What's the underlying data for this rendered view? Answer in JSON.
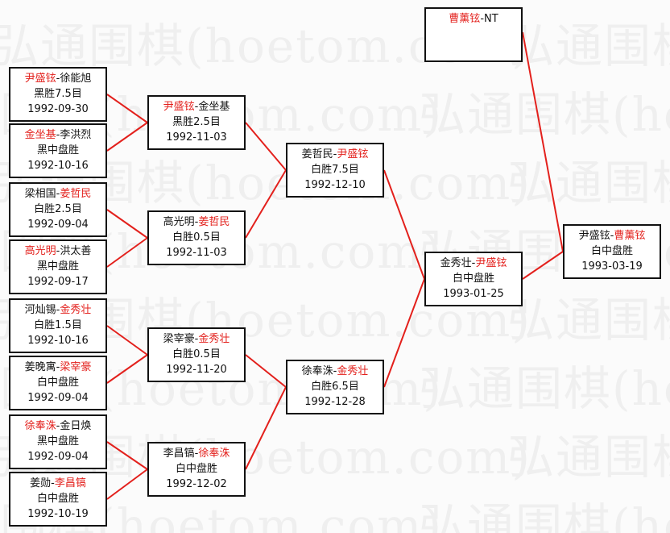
{
  "watermark": "弘通围棋(hoetom.com)",
  "colors": {
    "winner": "#e3201c",
    "connector": "#e3201c",
    "border": "#111111",
    "text": "#111111"
  },
  "rounds": [
    {
      "matches": [
        {
          "players": [
            {
              "name": "尹盛铉",
              "winner": true
            },
            {
              "name": "徐能旭",
              "winner": false
            }
          ],
          "result": "黑胜7.5目",
          "date": "1992-09-30"
        },
        {
          "players": [
            {
              "name": "金坐基",
              "winner": true
            },
            {
              "name": "李洪烈",
              "winner": false
            }
          ],
          "result": "黑中盘胜",
          "date": "1992-10-16"
        },
        {
          "players": [
            {
              "name": "梁相国",
              "winner": false
            },
            {
              "name": "姜哲民",
              "winner": true
            }
          ],
          "result": "白胜2.5目",
          "date": "1992-09-04"
        },
        {
          "players": [
            {
              "name": "高光明",
              "winner": true
            },
            {
              "name": "洪太善",
              "winner": false
            }
          ],
          "result": "黑中盘胜",
          "date": "1992-09-17"
        },
        {
          "players": [
            {
              "name": "河灿锡",
              "winner": false
            },
            {
              "name": "金秀壮",
              "winner": true
            }
          ],
          "result": "白胜1.5目",
          "date": "1992-10-16"
        },
        {
          "players": [
            {
              "name": "姜晚寓",
              "winner": false
            },
            {
              "name": "梁宰豪",
              "winner": true
            }
          ],
          "result": "白中盘胜",
          "date": "1992-09-04"
        },
        {
          "players": [
            {
              "name": "徐奉洙",
              "winner": true
            },
            {
              "name": "金日焕",
              "winner": false
            }
          ],
          "result": "黑中盘胜",
          "date": "1992-09-04"
        },
        {
          "players": [
            {
              "name": "姜勋",
              "winner": false
            },
            {
              "name": "李昌镐",
              "winner": true
            }
          ],
          "result": "白中盘胜",
          "date": "1992-10-19"
        }
      ]
    },
    {
      "matches": [
        {
          "players": [
            {
              "name": "尹盛铉",
              "winner": true
            },
            {
              "name": "金坐基",
              "winner": false
            }
          ],
          "result": "黑胜2.5目",
          "date": "1992-11-03"
        },
        {
          "players": [
            {
              "name": "高光明",
              "winner": false
            },
            {
              "name": "姜哲民",
              "winner": true
            }
          ],
          "result": "白胜0.5目",
          "date": "1992-11-03"
        },
        {
          "players": [
            {
              "name": "梁宰豪",
              "winner": false
            },
            {
              "name": "金秀壮",
              "winner": true
            }
          ],
          "result": "白胜0.5目",
          "date": "1992-11-20"
        },
        {
          "players": [
            {
              "name": "李昌镐",
              "winner": false
            },
            {
              "name": "徐奉洙",
              "winner": true
            }
          ],
          "result": "白中盘胜",
          "date": "1992-12-02"
        }
      ]
    },
    {
      "matches": [
        {
          "players": [
            {
              "name": "姜哲民",
              "winner": false
            },
            {
              "name": "尹盛铉",
              "winner": true
            }
          ],
          "result": "白胜7.5目",
          "date": "1992-12-10"
        },
        {
          "players": [
            {
              "name": "徐奉洙",
              "winner": false
            },
            {
              "name": "金秀壮",
              "winner": true
            }
          ],
          "result": "白胜6.5目",
          "date": "1992-12-28"
        }
      ]
    },
    {
      "matches": [
        {
          "players": [
            {
              "name": "金秀壮",
              "winner": false
            },
            {
              "name": "尹盛铉",
              "winner": true
            }
          ],
          "result": "白中盘胜",
          "date": "1993-01-25"
        },
        {
          "players": [
            {
              "name": "曹薰铉",
              "winner": true
            },
            {
              "name": "NT",
              "winner": false
            }
          ],
          "result": "",
          "date": ""
        }
      ]
    },
    {
      "matches": [
        {
          "players": [
            {
              "name": "尹盛铉",
              "winner": false
            },
            {
              "name": "曹薰铉",
              "winner": true
            }
          ],
          "result": "白中盘胜",
          "date": "1993-03-19"
        }
      ]
    }
  ]
}
